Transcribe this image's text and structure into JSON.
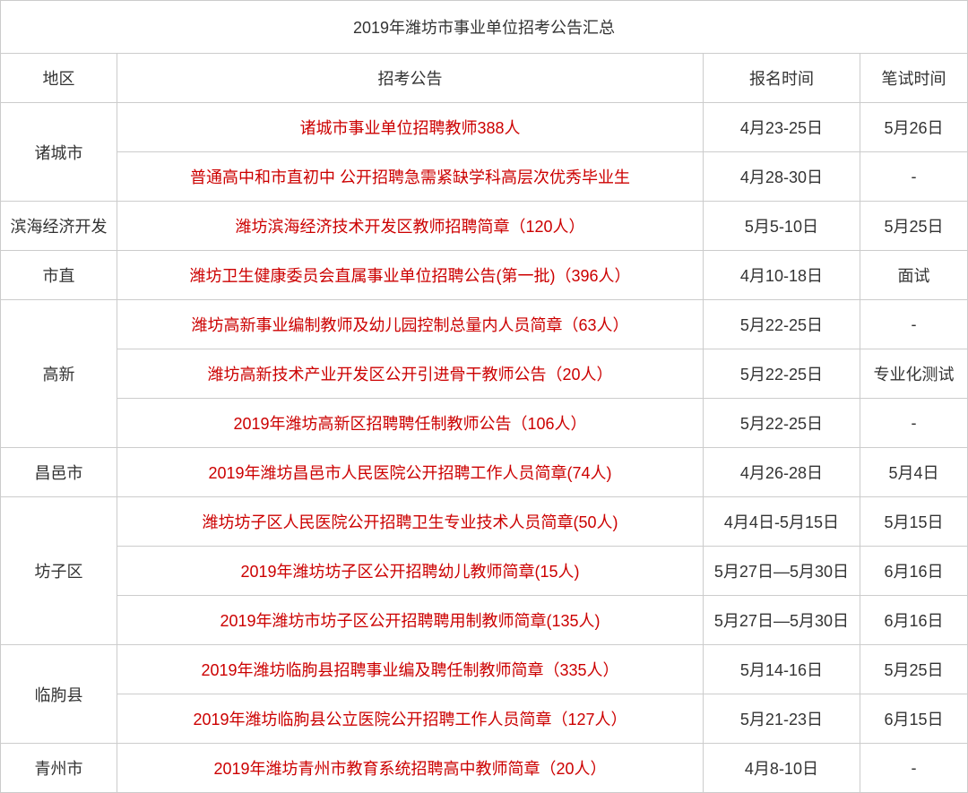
{
  "table": {
    "title": "2019年潍坊市事业单位招考公告汇总",
    "headers": {
      "region": "地区",
      "announcement": "招考公告",
      "signup_time": "报名时间",
      "exam_time": "笔试时间"
    },
    "colors": {
      "announcement_text": "#cc0000",
      "normal_text": "#333333",
      "border": "#cccccc",
      "background": "#ffffff"
    },
    "rows": [
      {
        "region": "诸城市",
        "entries": [
          {
            "announcement": "诸城市事业单位招聘教师388人",
            "signup": "4月23-25日",
            "exam": "5月26日"
          },
          {
            "announcement": "普通高中和市直初中 公开招聘急需紧缺学科高层次优秀毕业生",
            "signup": "4月28-30日",
            "exam": "-"
          }
        ]
      },
      {
        "region": "滨海经济开发",
        "entries": [
          {
            "announcement": "潍坊滨海经济技术开发区教师招聘简章（120人）",
            "signup": "5月5-10日",
            "exam": "5月25日"
          }
        ]
      },
      {
        "region": "市直",
        "entries": [
          {
            "announcement": "潍坊卫生健康委员会直属事业单位招聘公告(第一批)（396人）",
            "signup": "4月10-18日",
            "exam": "面试"
          }
        ]
      },
      {
        "region": "高新",
        "entries": [
          {
            "announcement": "潍坊高新事业编制教师及幼儿园控制总量内人员简章（63人）",
            "signup": "5月22-25日",
            "exam": "-"
          },
          {
            "announcement": "潍坊高新技术产业开发区公开引进骨干教师公告（20人）",
            "signup": "5月22-25日",
            "exam": "专业化测试"
          },
          {
            "announcement": "2019年潍坊高新区招聘聘任制教师公告（106人）",
            "signup": "5月22-25日",
            "exam": "-"
          }
        ]
      },
      {
        "region": "昌邑市",
        "entries": [
          {
            "announcement": "2019年潍坊昌邑市人民医院公开招聘工作人员简章(74人)",
            "signup": "4月26-28日",
            "exam": "5月4日"
          }
        ]
      },
      {
        "region": "坊子区",
        "entries": [
          {
            "announcement": "潍坊坊子区人民医院公开招聘卫生专业技术人员简章(50人)",
            "signup": "4月4日-5月15日",
            "exam": "5月15日"
          },
          {
            "announcement": "2019年潍坊坊子区公开招聘幼儿教师简章(15人)",
            "signup": "5月27日—5月30日",
            "exam": "6月16日"
          },
          {
            "announcement": "2019年潍坊市坊子区公开招聘聘用制教师简章(135人)",
            "signup": "5月27日—5月30日",
            "exam": "6月16日"
          }
        ]
      },
      {
        "region": "临朐县",
        "entries": [
          {
            "announcement": "2019年潍坊临朐县招聘事业编及聘任制教师简章（335人）",
            "signup": "5月14-16日",
            "exam": "5月25日"
          },
          {
            "announcement": "2019年潍坊临朐县公立医院公开招聘工作人员简章（127人）",
            "signup": "5月21-23日",
            "exam": "6月15日"
          }
        ]
      },
      {
        "region": "青州市",
        "entries": [
          {
            "announcement": "2019年潍坊青州市教育系统招聘高中教师简章（20人）",
            "signup": "4月8-10日",
            "exam": "-"
          }
        ]
      }
    ]
  }
}
